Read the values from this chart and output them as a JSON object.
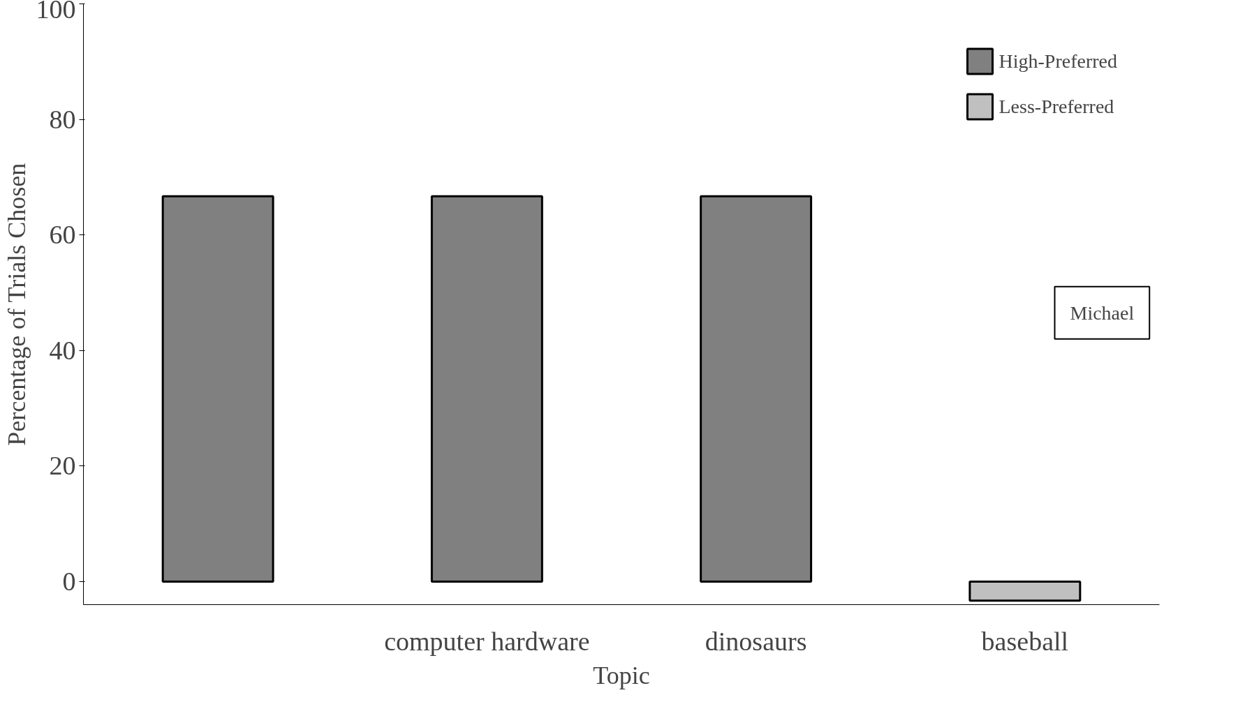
{
  "chart_data": {
    "type": "bar",
    "xlabel": "Topic",
    "ylabel": "Percentage of Trials Chosen",
    "categories": [
      null,
      "computer hardware",
      "dinosaurs",
      "baseball"
    ],
    "series": [
      {
        "name": "High-Preferred",
        "color": "#808080",
        "values": [
          66.7,
          66.7,
          66.7,
          null
        ]
      },
      {
        "name": "Less-Preferred",
        "color": "#c0c0c0",
        "values": [
          null,
          null,
          null,
          -3.3
        ]
      }
    ],
    "ylim": [
      -4,
      100
    ],
    "yticks": [
      0,
      20,
      40,
      60,
      80,
      100
    ],
    "grid": false,
    "legend": "top right",
    "annotations": [
      "Michael"
    ]
  }
}
